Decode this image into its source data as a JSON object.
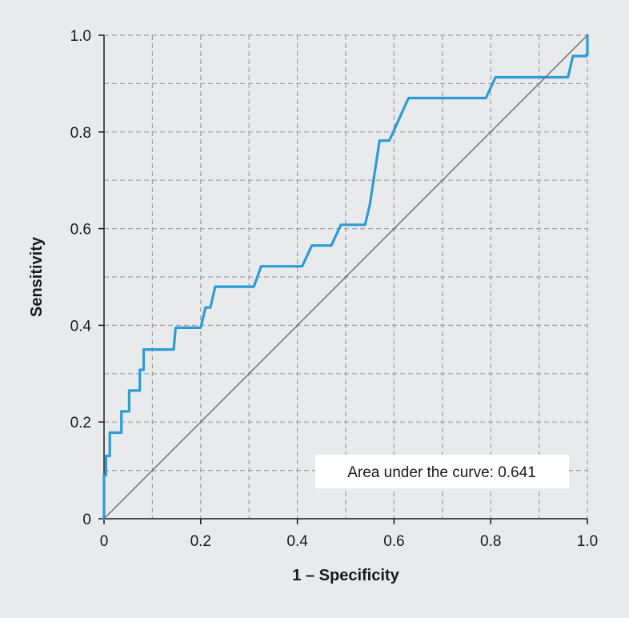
{
  "chart_data": {
    "type": "line",
    "title": "",
    "xlabel": "1 – Specificity",
    "ylabel": "Sensitivity",
    "xlim": [
      0,
      1
    ],
    "ylim": [
      0,
      1
    ],
    "x_ticks": [
      "0",
      "0.2",
      "0.4",
      "0.6",
      "0.8",
      "1.0"
    ],
    "y_ticks": [
      "0",
      "0.2",
      "0.4",
      "0.6",
      "0.8",
      "1.0"
    ],
    "grid": true,
    "grid_style": "dashed",
    "annotation": "Area under the curve: 0.641",
    "annotation_position": "bottom-right",
    "colors": {
      "curve": "#2d9cd6",
      "reference": "#6d6d6d",
      "grid": "#a0a0a0",
      "background": "#e8eaec",
      "annotation_box": "#ffffff"
    },
    "series": [
      {
        "role": "roc-curve",
        "x": [
          0,
          0,
          0.004,
          0.004,
          0.012,
          0.012,
          0.036,
          0.036,
          0.052,
          0.052,
          0.074,
          0.074,
          0.082,
          0.082,
          0.144,
          0.148,
          0.196,
          0.2,
          0.21,
          0.22,
          0.23,
          0.31,
          0.325,
          0.41,
          0.43,
          0.47,
          0.49,
          0.54,
          0.55,
          0.57,
          0.59,
          0.63,
          0.79,
          0.81,
          0.96,
          0.97,
          0.998,
          0.998,
          1.0,
          1.0
        ],
        "y": [
          0,
          0.09,
          0.09,
          0.13,
          0.13,
          0.178,
          0.178,
          0.222,
          0.222,
          0.265,
          0.265,
          0.308,
          0.308,
          0.35,
          0.35,
          0.395,
          0.395,
          0.395,
          0.437,
          0.437,
          0.48,
          0.48,
          0.522,
          0.522,
          0.565,
          0.565,
          0.608,
          0.608,
          0.65,
          0.782,
          0.782,
          0.87,
          0.87,
          0.913,
          0.913,
          0.957,
          0.957,
          0.96,
          0.96,
          1.0
        ]
      },
      {
        "role": "reference-diagonal",
        "x": [
          0,
          1
        ],
        "y": [
          0,
          1
        ]
      }
    ]
  }
}
